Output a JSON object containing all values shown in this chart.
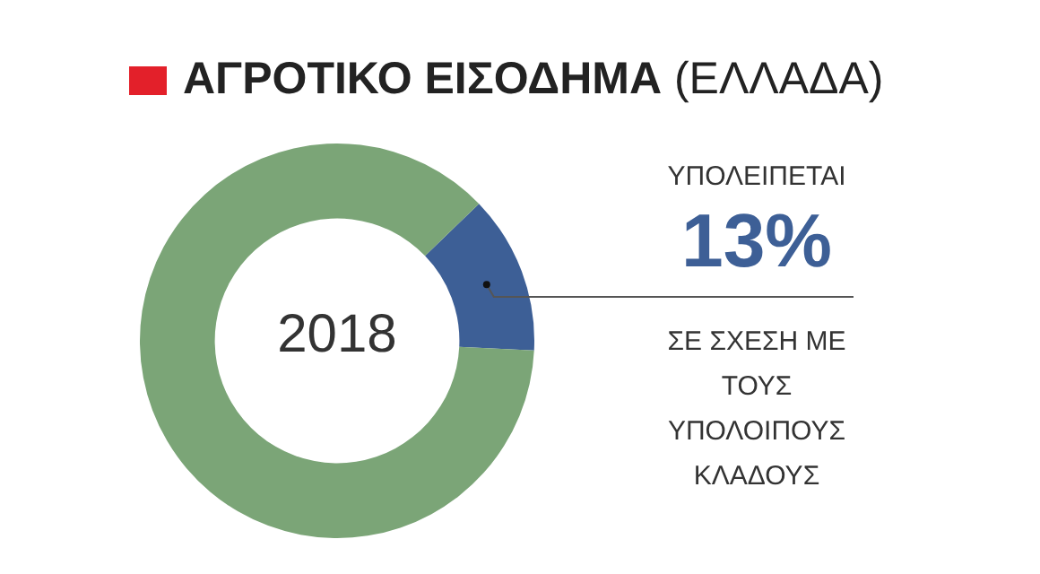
{
  "chart_data": {
    "type": "donut",
    "title": "ΑΓΡΟΤΙΚΟ ΕΙΣΟΔΗΜΑ (ΕΛΛΑΔΑ)",
    "categories": [
      null,
      null
    ],
    "values": [
      13,
      87
    ],
    "colors": [
      "#3d5f96",
      "#7ba577"
    ],
    "value_labels": [
      "13%",
      null
    ],
    "annotations": [
      "2018",
      "ΥΠΟΛΕΙΠΕΤΑΙ",
      "ΣΕ ΣΧΕΣΗ ΜΕ ΤΟΥΣ ΥΠΟΛΟΙΠΟΥΣ ΚΛΑΔΟΥΣ"
    ]
  }
}
